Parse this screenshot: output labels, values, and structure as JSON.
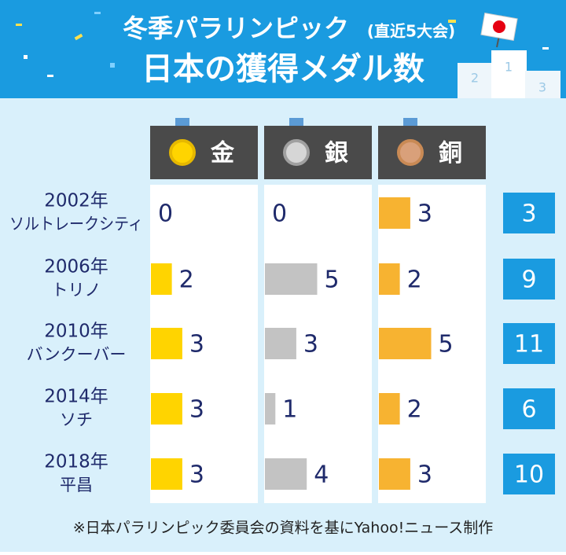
{
  "chart_data": {
    "type": "bar",
    "title": "冬季パラリンピック",
    "subtitle": "(直近5大会)",
    "title_line2": "日本の獲得メダル数",
    "podium_labels": [
      "1",
      "2",
      "3"
    ],
    "categories": [
      "2002年",
      "2006年",
      "2010年",
      "2014年",
      "2018年"
    ],
    "category_sublabels": [
      "ソルトレークシティ",
      "トリノ",
      "バンクーバー",
      "ソチ",
      "平昌"
    ],
    "series": [
      {
        "name": "金",
        "color": "#ffd400",
        "values": [
          0,
          2,
          3,
          3,
          3
        ]
      },
      {
        "name": "銀",
        "color": "#c3c3c3",
        "values": [
          0,
          5,
          3,
          1,
          4
        ]
      },
      {
        "name": "銅",
        "color": "#f7b331",
        "values": [
          3,
          2,
          5,
          2,
          3
        ]
      }
    ],
    "totals": [
      3,
      9,
      11,
      6,
      10
    ],
    "note": "※日本パラリンピック委員会の資料を基にYahoo!ニュース制作"
  }
}
